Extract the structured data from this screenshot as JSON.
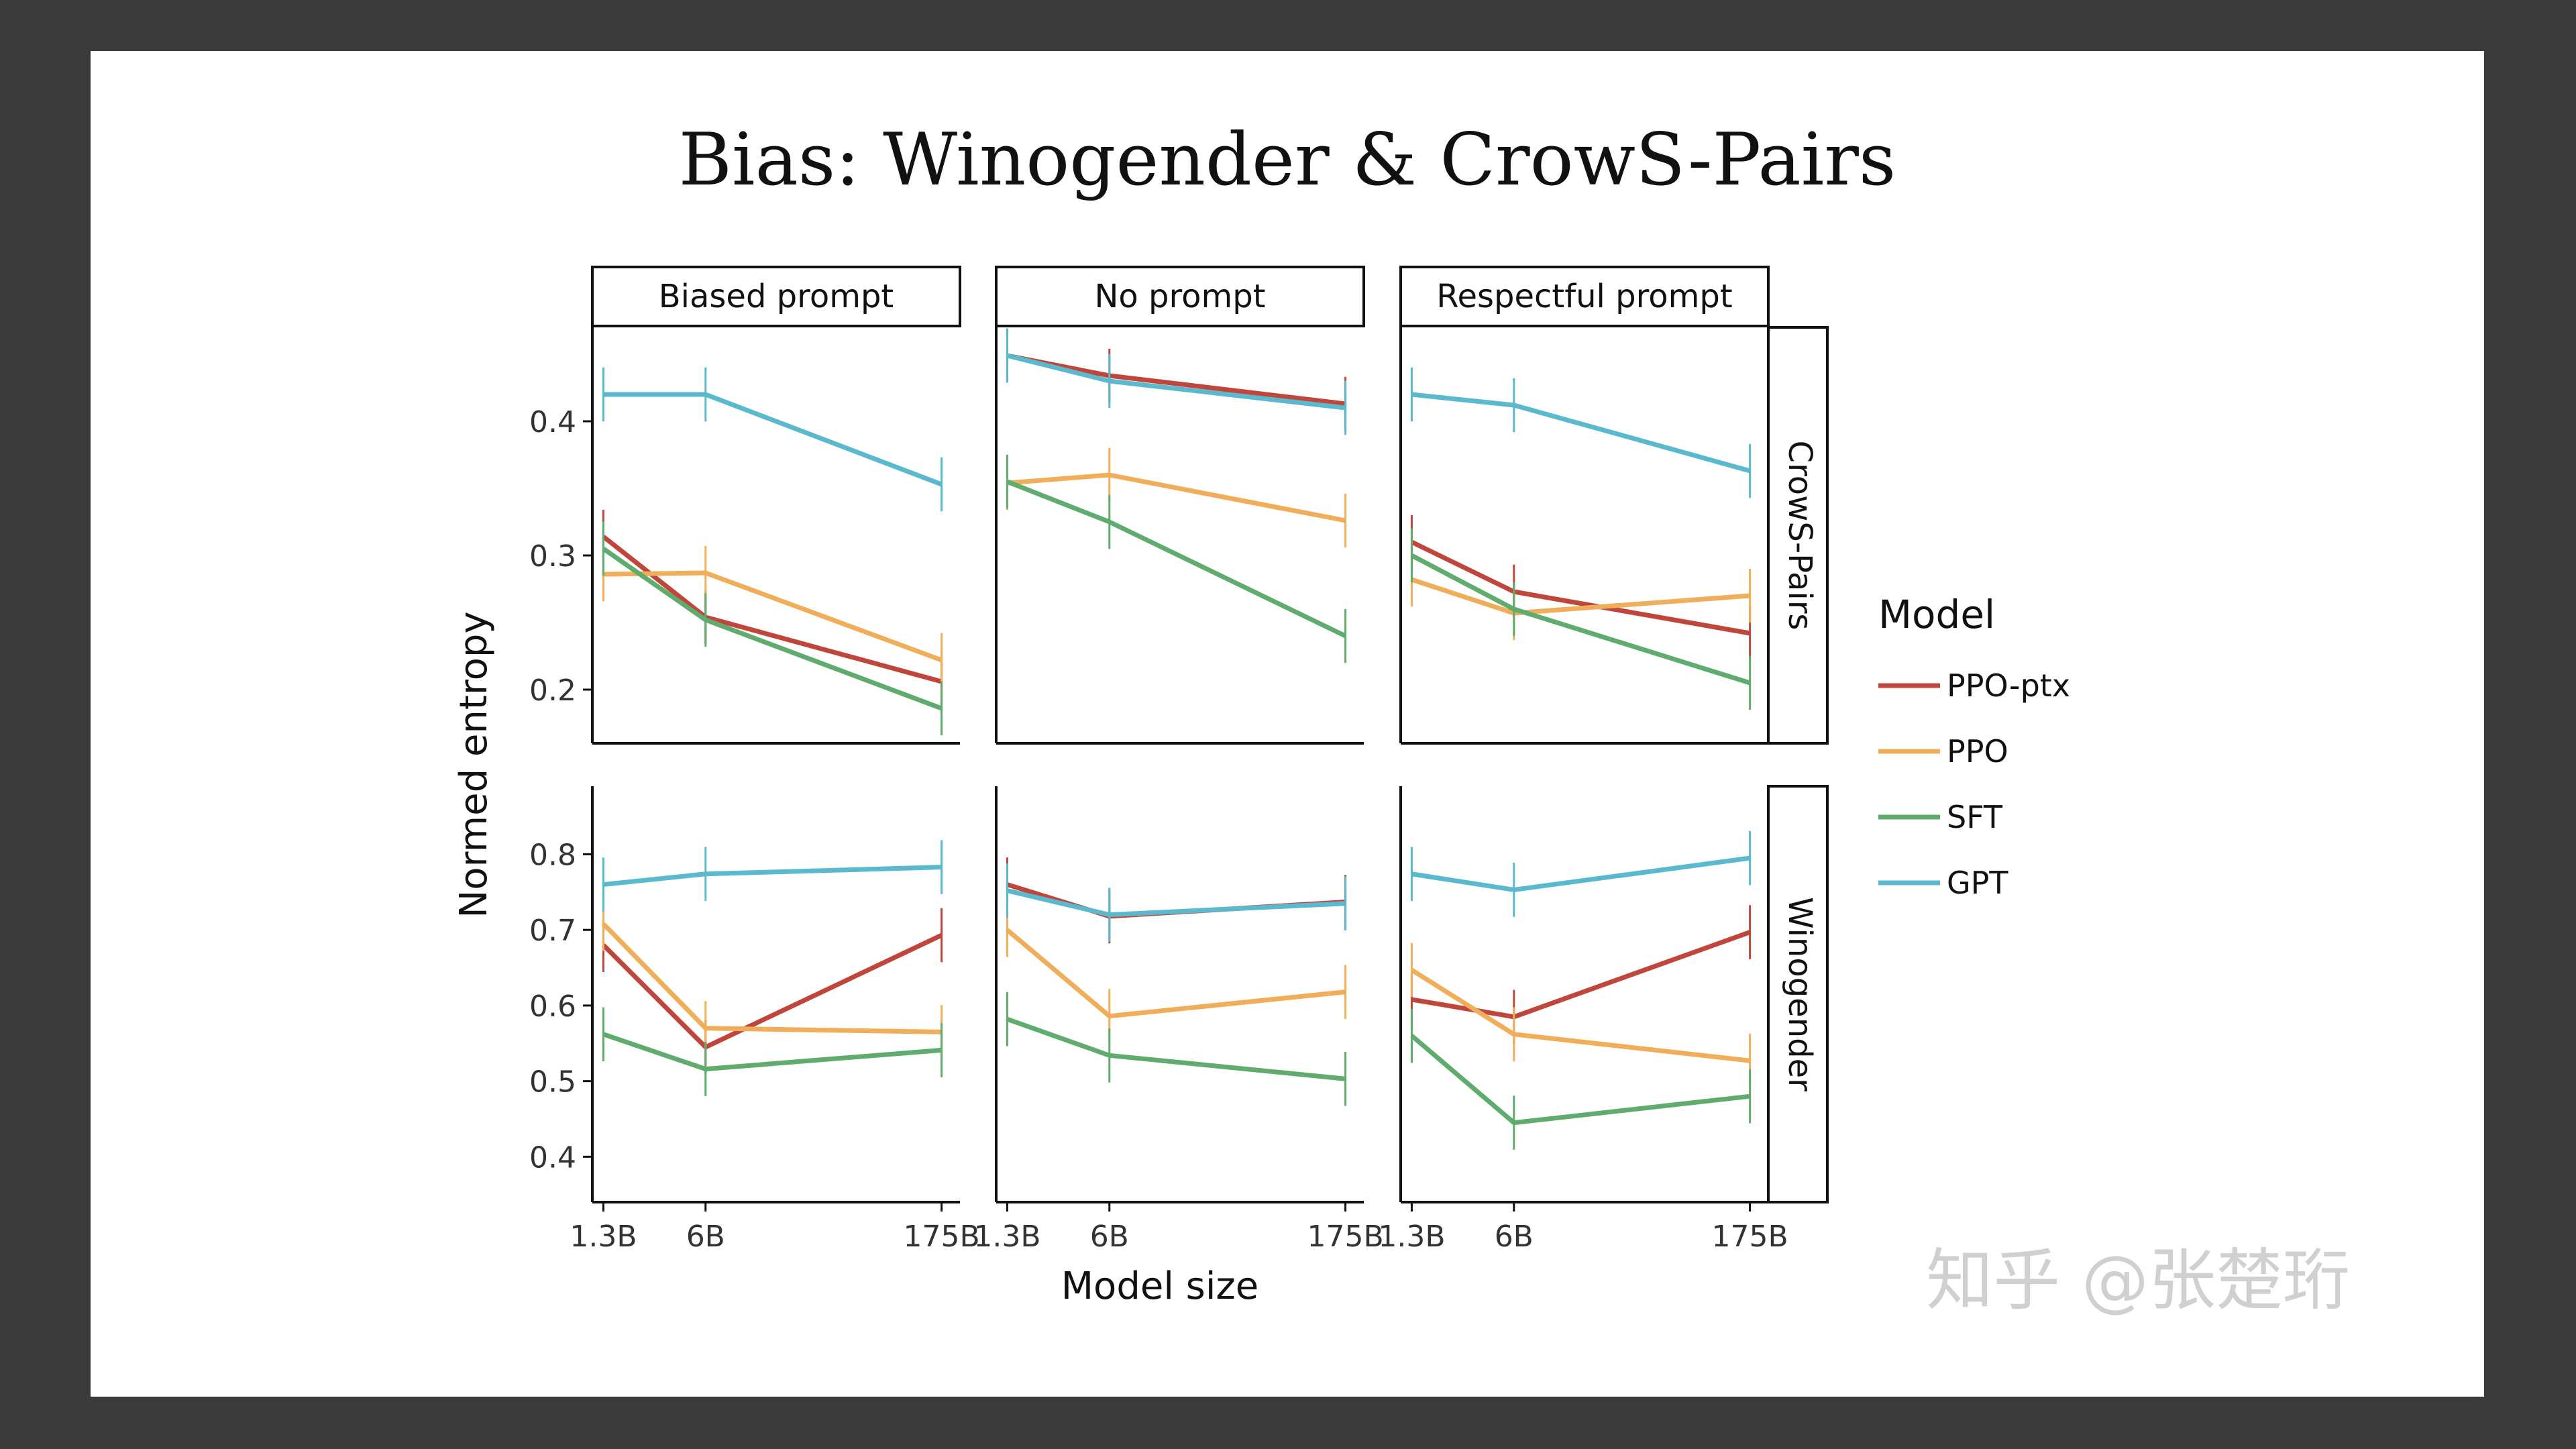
{
  "title": "Bias: Winogender & CrowS-Pairs",
  "watermark": "知乎 @张楚珩",
  "chart_data": {
    "type": "line",
    "x": [
      "1.3B",
      "6B",
      "175B"
    ],
    "xlabel": "Model size",
    "ylabel": "Normed entropy",
    "columns": [
      "Biased prompt",
      "No prompt",
      "Respectful prompt"
    ],
    "rows": [
      "CrowS-Pairs",
      "Winogender"
    ],
    "legend_title": "Model",
    "legend_position": "right",
    "series_info": [
      {
        "name": "PPO-ptx",
        "color": "#c0463c"
      },
      {
        "name": "PPO",
        "color": "#f0ae5a"
      },
      {
        "name": "SFT",
        "color": "#5fac6e"
      },
      {
        "name": "GPT",
        "color": "#5ab9cc"
      }
    ],
    "panels": [
      {
        "row": "CrowS-Pairs",
        "col": "Biased prompt",
        "ylim": [
          0.16,
          0.47
        ],
        "yticks": [
          0.2,
          0.3,
          0.4
        ],
        "series": [
          {
            "name": "PPO-ptx",
            "values": [
              0.314,
              0.254,
              0.206
            ]
          },
          {
            "name": "PPO",
            "values": [
              0.286,
              0.287,
              0.222
            ]
          },
          {
            "name": "SFT",
            "values": [
              0.305,
              0.252,
              0.186
            ]
          },
          {
            "name": "GPT",
            "values": [
              0.42,
              0.42,
              0.353
            ]
          }
        ]
      },
      {
        "row": "CrowS-Pairs",
        "col": "No prompt",
        "ylim": [
          0.16,
          0.47
        ],
        "yticks": [
          0.2,
          0.3,
          0.4
        ],
        "series": [
          {
            "name": "PPO-ptx",
            "values": [
              0.449,
              0.434,
              0.413
            ]
          },
          {
            "name": "PPO",
            "values": [
              0.354,
              0.36,
              0.326
            ]
          },
          {
            "name": "SFT",
            "values": [
              0.355,
              0.325,
              0.24
            ]
          },
          {
            "name": "GPT",
            "values": [
              0.449,
              0.43,
              0.41
            ]
          }
        ]
      },
      {
        "row": "CrowS-Pairs",
        "col": "Respectful prompt",
        "ylim": [
          0.16,
          0.47
        ],
        "yticks": [
          0.2,
          0.3,
          0.4
        ],
        "series": [
          {
            "name": "PPO-ptx",
            "values": [
              0.31,
              0.273,
              0.242
            ]
          },
          {
            "name": "PPO",
            "values": [
              0.282,
              0.257,
              0.27
            ]
          },
          {
            "name": "SFT",
            "values": [
              0.3,
              0.26,
              0.205
            ]
          },
          {
            "name": "GPT",
            "values": [
              0.42,
              0.412,
              0.363
            ]
          }
        ]
      },
      {
        "row": "Winogender",
        "col": "Biased prompt",
        "ylim": [
          0.34,
          0.89
        ],
        "yticks": [
          0.4,
          0.5,
          0.6,
          0.7,
          0.8
        ],
        "series": [
          {
            "name": "PPO-ptx",
            "values": [
              0.68,
              0.545,
              0.693
            ]
          },
          {
            "name": "PPO",
            "values": [
              0.708,
              0.57,
              0.565
            ]
          },
          {
            "name": "SFT",
            "values": [
              0.562,
              0.516,
              0.541
            ]
          },
          {
            "name": "GPT",
            "values": [
              0.76,
              0.774,
              0.783
            ]
          }
        ]
      },
      {
        "row": "Winogender",
        "col": "No prompt",
        "ylim": [
          0.34,
          0.89
        ],
        "yticks": [
          0.4,
          0.5,
          0.6,
          0.7,
          0.8
        ],
        "series": [
          {
            "name": "PPO-ptx",
            "values": [
              0.76,
              0.718,
              0.737
            ]
          },
          {
            "name": "PPO",
            "values": [
              0.7,
              0.586,
              0.618
            ]
          },
          {
            "name": "SFT",
            "values": [
              0.582,
              0.534,
              0.503
            ]
          },
          {
            "name": "GPT",
            "values": [
              0.752,
              0.72,
              0.735
            ]
          }
        ]
      },
      {
        "row": "Winogender",
        "col": "Respectful prompt",
        "ylim": [
          0.34,
          0.89
        ],
        "yticks": [
          0.4,
          0.5,
          0.6,
          0.7,
          0.8
        ],
        "series": [
          {
            "name": "PPO-ptx",
            "values": [
              0.608,
              0.585,
              0.697
            ]
          },
          {
            "name": "PPO",
            "values": [
              0.647,
              0.562,
              0.527
            ]
          },
          {
            "name": "SFT",
            "values": [
              0.56,
              0.445,
              0.48
            ]
          },
          {
            "name": "GPT",
            "values": [
              0.774,
              0.753,
              0.795
            ]
          }
        ]
      }
    ]
  }
}
